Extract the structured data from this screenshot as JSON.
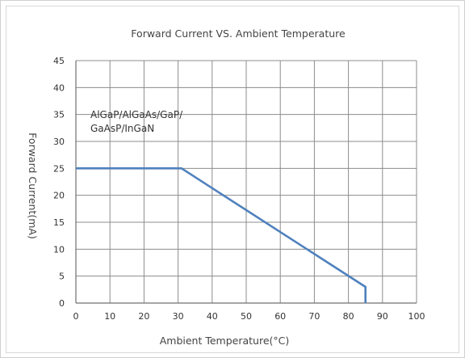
{
  "chart_data": {
    "type": "line",
    "title": "Forward Current VS. Ambient Temperature",
    "xlabel": "Ambient Temperature(°C)",
    "ylabel": "Forward Current(mA)",
    "xlim": [
      0,
      100
    ],
    "ylim": [
      0,
      45
    ],
    "x_ticks": [
      0,
      10,
      20,
      30,
      40,
      50,
      60,
      70,
      80,
      90,
      100
    ],
    "y_ticks": [
      0,
      5,
      10,
      15,
      20,
      25,
      30,
      35,
      40,
      45
    ],
    "x_tick_labels": [
      "0",
      "10",
      "20",
      "30",
      "40",
      "50",
      "60",
      "70",
      "80",
      "90",
      "100"
    ],
    "y_tick_labels": [
      "0",
      "5",
      "10",
      "15",
      "20",
      "25",
      "30",
      "35",
      "40",
      "45"
    ],
    "grid": true,
    "legend": "none",
    "annotation": [
      "AlGaP/AlGaAs/GaP/",
      "GaAsP/InGaN"
    ],
    "series": [
      {
        "color": "#4f81bd",
        "points": [
          [
            0,
            25
          ],
          [
            31,
            25
          ],
          [
            85,
            3
          ],
          [
            85,
            0
          ]
        ]
      }
    ]
  }
}
